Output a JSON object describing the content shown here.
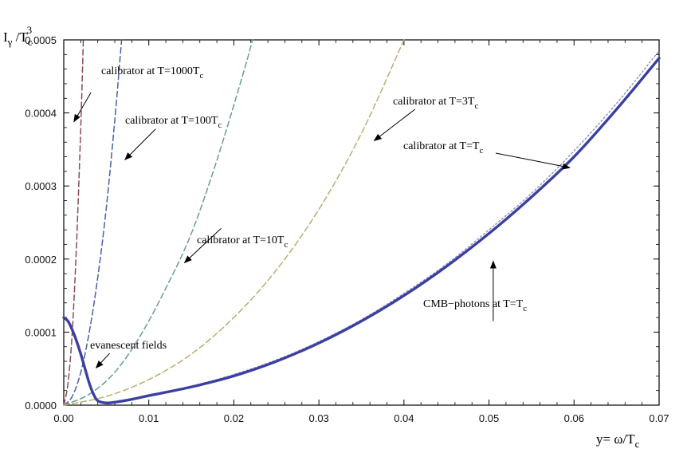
{
  "chart_data": {
    "type": "line",
    "xlabel": "y= ω/T",
    "xlabel_sub": "c",
    "ylabel": "I",
    "ylabel_sub_gamma": "γ",
    "ylabel_mid": " /T",
    "ylabel_sub": "c",
    "ylabel_sup": "3",
    "xlim": [
      0.0,
      0.07
    ],
    "ylim": [
      0.0,
      0.0005
    ],
    "x_ticks": [
      "0.00",
      "0.01",
      "0.02",
      "0.03",
      "0.04",
      "0.05",
      "0.06",
      "0.07"
    ],
    "x_tick_values": [
      0,
      0.01,
      0.02,
      0.03,
      0.04,
      0.05,
      0.06,
      0.07
    ],
    "y_ticks": [
      "0.0000",
      "0.0001",
      "0.0002",
      "0.0003",
      "0.0004",
      "0.0005"
    ],
    "y_tick_values": [
      0,
      0.0001,
      0.0002,
      0.0003,
      0.0004,
      0.0005
    ],
    "grid": false,
    "series": [
      {
        "key": "cmb",
        "style": "solid",
        "color": "#3b3fa0",
        "x": [
          0.0,
          0.0005,
          0.001,
          0.0015,
          0.002,
          0.0025,
          0.003,
          0.0035,
          0.004,
          0.005,
          0.006,
          0.008,
          0.01,
          0.015,
          0.02,
          0.025,
          0.03,
          0.035,
          0.04,
          0.045,
          0.05,
          0.055,
          0.06,
          0.065,
          0.07
        ],
        "y": [
          0.00012,
          0.000115,
          0.000103,
          8.8e-05,
          7e-05,
          5e-05,
          3e-05,
          1.5e-05,
          6e-06,
          3e-06,
          4e-06,
          8e-06,
          1.3e-05,
          2.5e-05,
          4e-05,
          6e-05,
          8.5e-05,
          0.000115,
          0.00015,
          0.00019,
          0.000235,
          0.000285,
          0.00034,
          0.000405,
          0.000475
        ]
      },
      {
        "key": "t1",
        "style": "dotted",
        "color": "#8a8fc4",
        "x": [
          0.006,
          0.01,
          0.015,
          0.02,
          0.025,
          0.03,
          0.035,
          0.04,
          0.045,
          0.05,
          0.055,
          0.06,
          0.065,
          0.07
        ],
        "y": [
          4e-06,
          1.3e-05,
          2.6e-05,
          4.2e-05,
          6.2e-05,
          8.7e-05,
          0.000117,
          0.000153,
          0.000193,
          0.00024,
          0.00029,
          0.000348,
          0.000413,
          0.000485
        ]
      },
      {
        "key": "t3",
        "style": "dashed",
        "color": "#b9ad6e",
        "x": [
          0.0,
          0.005,
          0.01,
          0.015,
          0.02,
          0.025,
          0.03,
          0.035,
          0.04
        ],
        "y": [
          0.0,
          1.2e-05,
          3.5e-05,
          7e-05,
          0.00012,
          0.000185,
          0.000268,
          0.000372,
          0.0005
        ]
      },
      {
        "key": "t10",
        "style": "dashed",
        "color": "#6a9a99",
        "x": [
          0.0,
          0.003,
          0.006,
          0.009,
          0.012,
          0.015,
          0.018,
          0.021,
          0.0222
        ],
        "y": [
          0.0,
          1.5e-05,
          4.5e-05,
          9.5e-05,
          0.00016,
          0.000235,
          0.000335,
          0.00045,
          0.0005
        ]
      },
      {
        "key": "t100",
        "style": "dashed",
        "color": "#4a5fa6",
        "x": [
          0.0,
          0.001,
          0.002,
          0.003,
          0.004,
          0.005,
          0.006,
          0.0068
        ],
        "y": [
          0.0,
          1.2e-05,
          4.5e-05,
          0.0001,
          0.000175,
          0.00027,
          0.00039,
          0.0005
        ]
      },
      {
        "key": "t1000",
        "style": "dashed",
        "color": "#8a4a55",
        "x": [
          0.0,
          0.0005,
          0.001,
          0.0015,
          0.002,
          0.0023
        ],
        "y": [
          0.0,
          3e-05,
          0.0001,
          0.00022,
          0.00038,
          0.0005
        ]
      }
    ],
    "annotations": [
      {
        "key": "a1000",
        "text": "calibrator at T=1000T",
        "sub": "c",
        "arrow_from": [
          0.0032,
          0.000428
        ],
        "arrow_to": [
          0.0012,
          0.000388
        ]
      },
      {
        "key": "a100",
        "text": "calibrator at T=100T",
        "sub": "c",
        "arrow_from": [
          0.0108,
          0.000378
        ],
        "arrow_to": [
          0.0072,
          0.000336
        ]
      },
      {
        "key": "a3",
        "text": "calibrator at T=3T",
        "sub": "c",
        "arrow_from": [
          0.0413,
          0.000405
        ],
        "arrow_to": [
          0.0365,
          0.000362
        ]
      },
      {
        "key": "a1",
        "text": "calibrator at T=T",
        "sub": "c",
        "arrow_from": [
          0.0508,
          0.000345
        ],
        "arrow_to": [
          0.0595,
          0.000325
        ]
      },
      {
        "key": "a10",
        "text": "calibrator at T=10T",
        "sub": "c",
        "arrow_from": [
          0.0185,
          0.000242
        ],
        "arrow_to": [
          0.0142,
          0.000195
        ]
      },
      {
        "key": "acmb",
        "text": "CMB−photons at T=T",
        "sub": "c",
        "arrow_from": [
          0.0505,
          0.000115
        ],
        "arrow_to": [
          0.0505,
          0.000197
        ]
      },
      {
        "key": "aev",
        "text": "evanescent fields",
        "sub": "",
        "arrow_from": [
          0.0054,
          7.1e-05
        ],
        "arrow_to": [
          0.0038,
          5.1e-05
        ]
      }
    ]
  }
}
